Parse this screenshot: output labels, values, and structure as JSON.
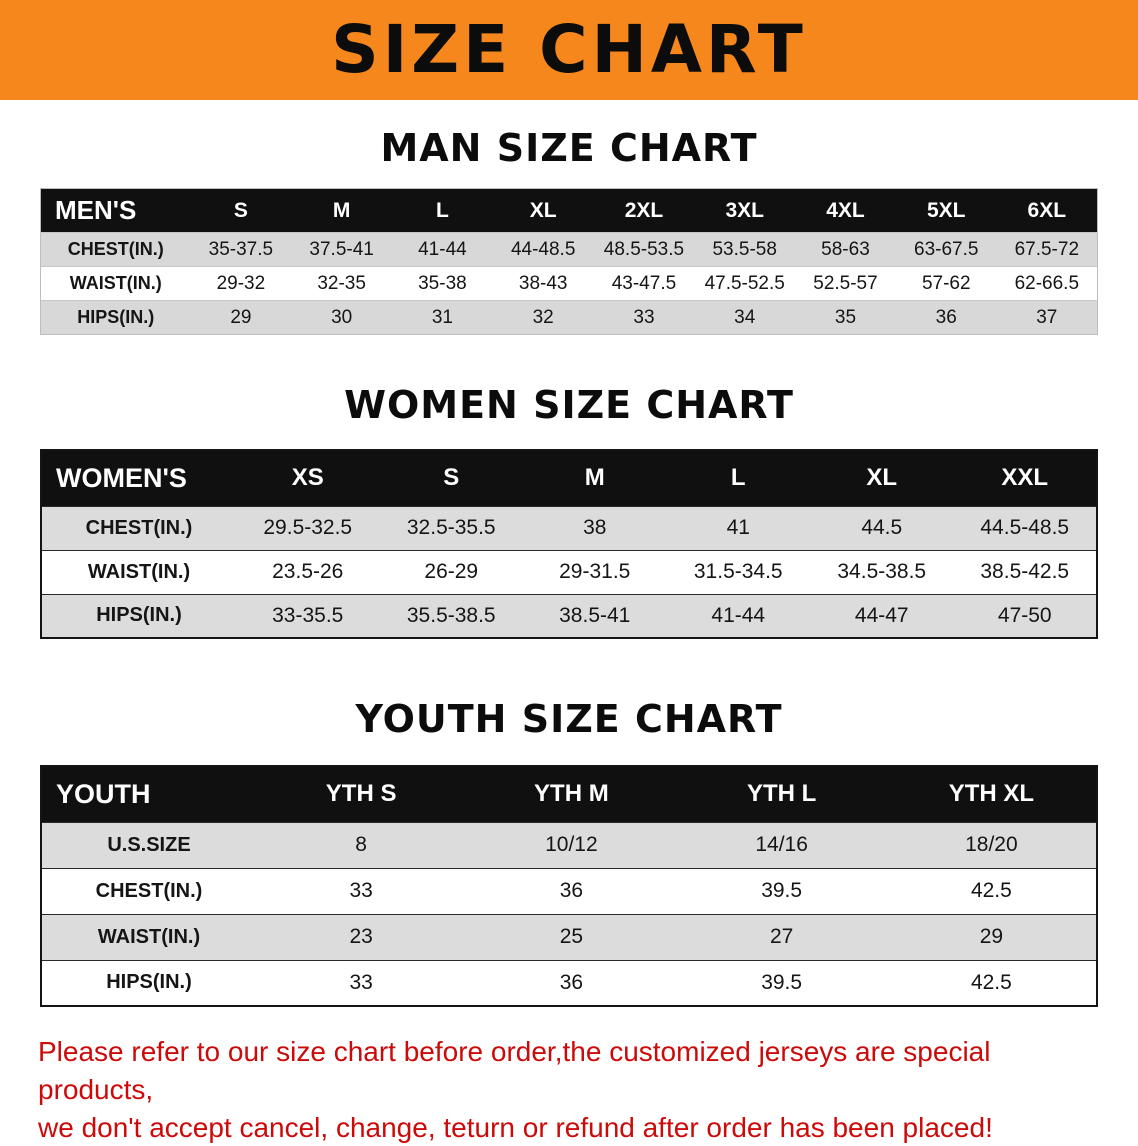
{
  "banner": {
    "title": "SIZE CHART",
    "bg_color": "#F6871D",
    "title_color": "#0C0C0C"
  },
  "colors": {
    "table_header_bg": "#101010",
    "table_header_text": "#FFFFFF",
    "row_alt_bg": "#D8D8D8",
    "notice_text": "#CC0A0A",
    "page_bg": "#FFFFFF"
  },
  "chart_data": [
    {
      "type": "table",
      "title": "MAN SIZE CHART",
      "header": [
        "MEN'S",
        "S",
        "M",
        "L",
        "XL",
        "2XL",
        "3XL",
        "4XL",
        "5XL",
        "6XL"
      ],
      "rows": [
        [
          "CHEST(IN.)",
          "35-37.5",
          "37.5-41",
          "41-44",
          "44-48.5",
          "48.5-53.5",
          "53.5-58",
          "58-63",
          "63-67.5",
          "67.5-72"
        ],
        [
          "WAIST(IN.)",
          "29-32",
          "32-35",
          "35-38",
          "38-43",
          "43-47.5",
          "47.5-52.5",
          "52.5-57",
          "57-62",
          "62-66.5"
        ],
        [
          "HIPS(IN.)",
          "29",
          "30",
          "31",
          "32",
          "33",
          "34",
          "35",
          "36",
          "37"
        ]
      ]
    },
    {
      "type": "table",
      "title": "WOMEN SIZE CHART",
      "header": [
        "WOMEN'S",
        "XS",
        "S",
        "M",
        "L",
        "XL",
        "XXL"
      ],
      "rows": [
        [
          "CHEST(IN.)",
          "29.5-32.5",
          "32.5-35.5",
          "38",
          "41",
          "44.5",
          "44.5-48.5"
        ],
        [
          "WAIST(IN.)",
          "23.5-26",
          "26-29",
          "29-31.5",
          "31.5-34.5",
          "34.5-38.5",
          "38.5-42.5"
        ],
        [
          "HIPS(IN.)",
          "33-35.5",
          "35.5-38.5",
          "38.5-41",
          "41-44",
          "44-47",
          "47-50"
        ]
      ]
    },
    {
      "type": "table",
      "title": "YOUTH SIZE CHART",
      "header": [
        "YOUTH",
        "YTH S",
        "YTH M",
        "YTH L",
        "YTH XL"
      ],
      "rows": [
        [
          "U.S.SIZE",
          "8",
          "10/12",
          "14/16",
          "18/20"
        ],
        [
          "CHEST(IN.)",
          "33",
          "36",
          "39.5",
          "42.5"
        ],
        [
          "WAIST(IN.)",
          "23",
          "25",
          "27",
          "29"
        ],
        [
          "HIPS(IN.)",
          "33",
          "36",
          "39.5",
          "42.5"
        ]
      ]
    }
  ],
  "notice": {
    "line1": "Please refer to our size chart before order,the customized jerseys are special products,",
    "line2": "we don't accept cancel, change, teturn or refund after order has been placed!"
  }
}
